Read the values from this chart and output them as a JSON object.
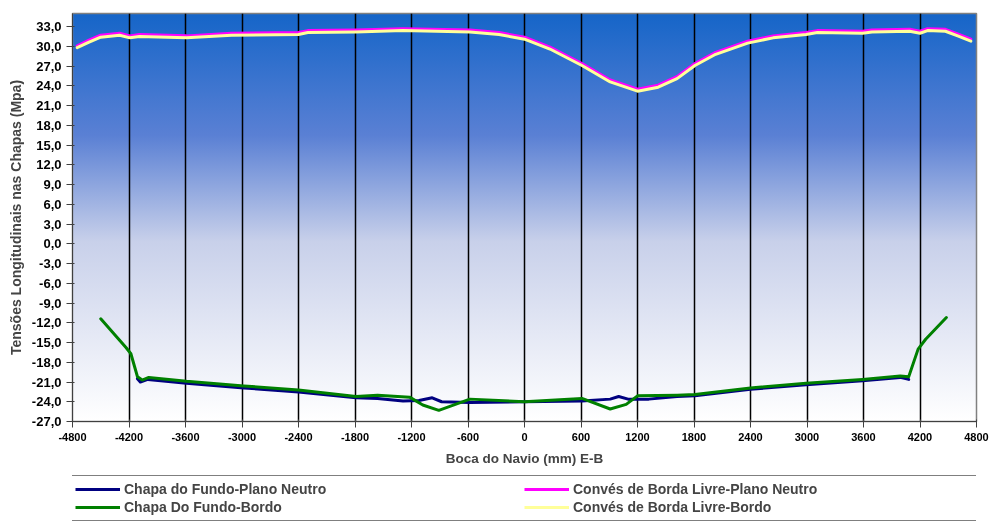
{
  "chart_data": {
    "type": "line",
    "xlabel": "Boca do Navio (mm) E-B",
    "ylabel": "Tensões Longitudinais nas Chapas (Mpa)",
    "xlim": [
      -4800,
      4800
    ],
    "ylim": [
      -27,
      35
    ],
    "xticks": [
      -4800,
      -4200,
      -3600,
      -3000,
      -2400,
      -1800,
      -1200,
      -600,
      0,
      600,
      1200,
      1800,
      2400,
      3000,
      3600,
      4200,
      4800
    ],
    "yticks": [
      {
        "value": -27,
        "label": "-27,0"
      },
      {
        "value": -24,
        "label": "-24,0"
      },
      {
        "value": -21,
        "label": "-21,0"
      },
      {
        "value": -18,
        "label": "-18,0"
      },
      {
        "value": -15,
        "label": "-15,0"
      },
      {
        "value": -12,
        "label": "-12,0"
      },
      {
        "value": -9,
        "label": "-9,0"
      },
      {
        "value": -6,
        "label": "-6,0"
      },
      {
        "value": -3,
        "label": "-3,0"
      },
      {
        "value": 0,
        "label": "0,0"
      },
      {
        "value": 3,
        "label": "3,0"
      },
      {
        "value": 6,
        "label": "6,0"
      },
      {
        "value": 9,
        "label": "9,0"
      },
      {
        "value": 12,
        "label": "12,0"
      },
      {
        "value": 15,
        "label": "15,0"
      },
      {
        "value": 18,
        "label": "18,0"
      },
      {
        "value": 21,
        "label": "21,0"
      },
      {
        "value": 24,
        "label": "24,0"
      },
      {
        "value": 27,
        "label": "27,0"
      },
      {
        "value": 30,
        "label": "30,0"
      },
      {
        "value": 33,
        "label": "33,0"
      }
    ],
    "grid": "x",
    "legend": "bottom",
    "marker": "none",
    "line_style": "solid",
    "series": [
      {
        "name": "Chapa do Fundo-Plano Neutro",
        "color": "#000080",
        "x": [
          -4110,
          -4080,
          -4000,
          -3590,
          -2980,
          -2400,
          -1790,
          -1560,
          -1290,
          -1120,
          -980,
          -880,
          -580,
          0,
          610,
          910,
          1000,
          1100,
          1320,
          1620,
          1810,
          2400,
          2990,
          3590,
          3990,
          4080
        ],
        "values": [
          -20.5,
          -21.0,
          -20.6,
          -21.2,
          -21.9,
          -22.5,
          -23.4,
          -23.5,
          -23.9,
          -23.8,
          -23.4,
          -24.0,
          -24.1,
          -24.0,
          -23.9,
          -23.6,
          -23.2,
          -23.6,
          -23.6,
          -23.2,
          -23.1,
          -22.1,
          -21.4,
          -20.8,
          -20.3,
          -20.6
        ]
      },
      {
        "name": "Convés de Borda Livre-Plano Neutro",
        "color": "#ff00ff",
        "x": [
          -4750,
          -4630,
          -4500,
          -4300,
          -4190,
          -4090,
          -3590,
          -3110,
          -2400,
          -2300,
          -1790,
          -1290,
          -580,
          -270,
          0,
          270,
          610,
          910,
          1200,
          1420,
          1620,
          1810,
          2030,
          2370,
          2640,
          2990,
          3110,
          3590,
          3690,
          4090,
          4200,
          4280,
          4470,
          4600,
          4740
        ],
        "values": [
          30.1,
          30.9,
          31.7,
          32.0,
          31.6,
          31.8,
          31.6,
          32.0,
          32.1,
          32.4,
          32.5,
          32.7,
          32.5,
          32.1,
          31.4,
          29.9,
          27.4,
          24.9,
          23.5,
          24.1,
          25.4,
          27.4,
          29.1,
          30.8,
          31.6,
          32.1,
          32.4,
          32.3,
          32.5,
          32.6,
          32.3,
          32.7,
          32.6,
          31.9,
          31.1
        ]
      },
      {
        "name": "Chapa Do Fundo-Bordo",
        "color": "#008000",
        "x": [
          -4500,
          -4230,
          -4180,
          -4110,
          -4060,
          -3990,
          -3590,
          -2980,
          -2400,
          -1790,
          -1560,
          -1220,
          -1080,
          -910,
          -580,
          0,
          610,
          910,
          1080,
          1200,
          1620,
          1810,
          2400,
          2990,
          3590,
          3990,
          4080,
          4180,
          4260,
          4480
        ],
        "values": [
          -11.4,
          -15.8,
          -16.7,
          -20.2,
          -20.7,
          -20.3,
          -20.9,
          -21.6,
          -22.2,
          -23.2,
          -23.0,
          -23.3,
          -24.5,
          -25.3,
          -23.6,
          -24.0,
          -23.5,
          -25.1,
          -24.4,
          -23.1,
          -23.0,
          -22.9,
          -21.9,
          -21.2,
          -20.6,
          -20.1,
          -20.2,
          -16.0,
          -14.5,
          -11.2
        ]
      },
      {
        "name": "Convés de Borda Livre-Bordo",
        "color": "#ffff99",
        "x": [
          -4750,
          -4630,
          -4500,
          -4300,
          -4190,
          -4090,
          -3590,
          -3110,
          -2400,
          -2300,
          -1790,
          -1290,
          -580,
          -270,
          0,
          270,
          610,
          910,
          1200,
          1420,
          1620,
          1810,
          2030,
          2370,
          2640,
          2990,
          3110,
          3590,
          3690,
          4090,
          4200,
          4280,
          4470,
          4600,
          4740
        ],
        "values": [
          29.8,
          30.6,
          31.4,
          31.7,
          31.3,
          31.5,
          31.3,
          31.7,
          31.8,
          32.1,
          32.2,
          32.4,
          32.2,
          31.8,
          31.1,
          29.6,
          27.1,
          24.6,
          23.2,
          23.8,
          25.1,
          27.1,
          28.8,
          30.5,
          31.3,
          31.8,
          32.1,
          32.0,
          32.2,
          32.3,
          32.0,
          32.4,
          32.3,
          31.6,
          30.8
        ]
      }
    ]
  }
}
